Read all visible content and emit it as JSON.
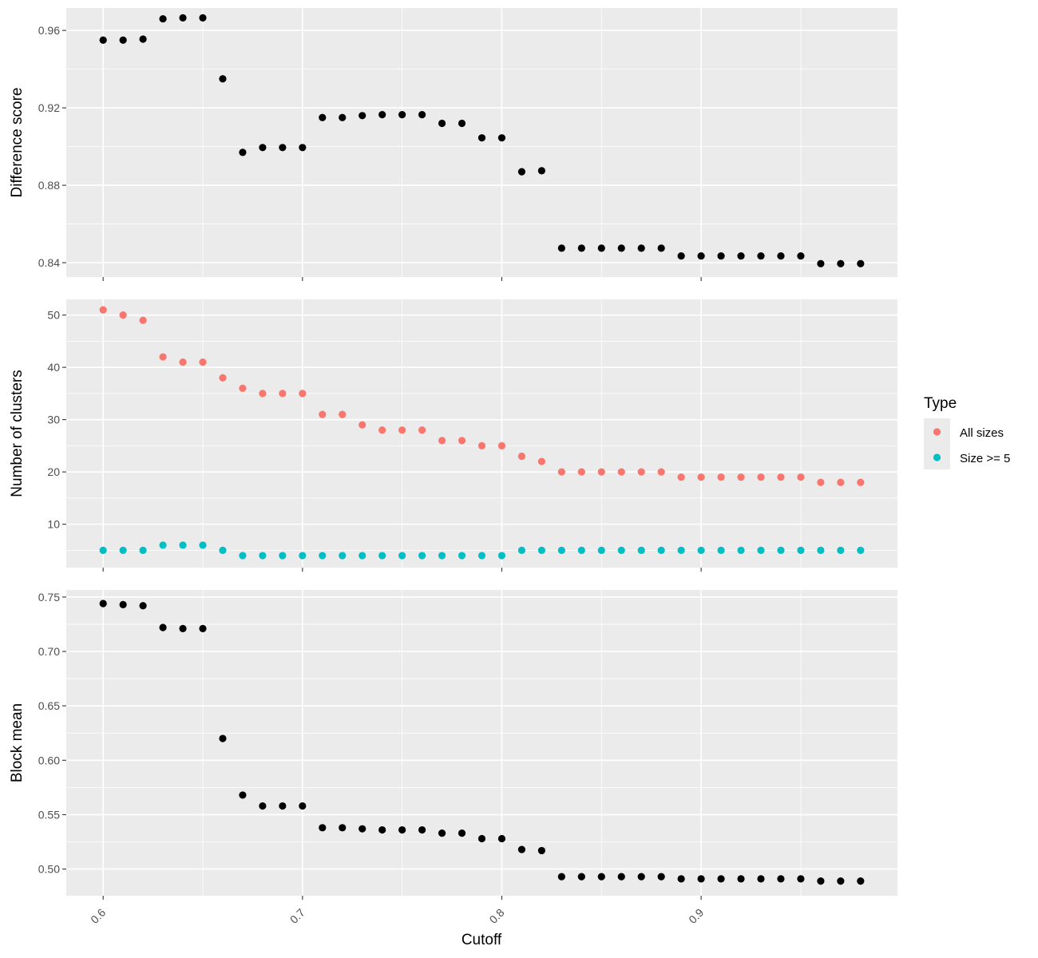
{
  "chart_data": {
    "type": "scatter",
    "xlabel": "Cutoff",
    "x_ticks": [
      0.6,
      0.7,
      0.8,
      0.9
    ],
    "x_tick_labels": [
      "0.6",
      "0.7",
      "0.8",
      "0.9"
    ],
    "xlim": [
      0.5815,
      0.9985
    ],
    "x": [
      0.6,
      0.61,
      0.62,
      0.63,
      0.64,
      0.65,
      0.66,
      0.67,
      0.68,
      0.69,
      0.7,
      0.71,
      0.72,
      0.73,
      0.74,
      0.75,
      0.76,
      0.77,
      0.78,
      0.79,
      0.8,
      0.81,
      0.82,
      0.83,
      0.84,
      0.85,
      0.86,
      0.87,
      0.88,
      0.89,
      0.9,
      0.91,
      0.92,
      0.93,
      0.94,
      0.95,
      0.96,
      0.97,
      0.98
    ],
    "grid": true,
    "panels": [
      {
        "ylabel": "Difference score",
        "ylim": [
          0.8326,
          0.9716
        ],
        "y_ticks": [
          0.84,
          0.88,
          0.92,
          0.96
        ],
        "y_tick_labels": [
          "0.84",
          "0.88",
          "0.92",
          "0.96"
        ],
        "series": [
          {
            "color": "#000000",
            "values": [
              0.955,
              0.955,
              0.9555,
              0.966,
              0.9665,
              0.9665,
              0.935,
              0.897,
              0.8995,
              0.8995,
              0.8995,
              0.915,
              0.915,
              0.916,
              0.9165,
              0.9165,
              0.9165,
              0.912,
              0.912,
              0.9045,
              0.9045,
              0.887,
              0.8875,
              0.8475,
              0.8475,
              0.8475,
              0.8475,
              0.8475,
              0.8475,
              0.8435,
              0.8435,
              0.8435,
              0.8435,
              0.8435,
              0.8435,
              0.8435,
              0.8395,
              0.8395,
              0.8395
            ]
          }
        ]
      },
      {
        "ylabel": "Number of clusters",
        "ylim": [
          1.7,
          53.0
        ],
        "y_ticks": [
          10,
          20,
          30,
          40,
          50
        ],
        "y_tick_labels": [
          "10",
          "20",
          "30",
          "40",
          "50"
        ],
        "series": [
          {
            "name": "All sizes",
            "color": "#F8766D",
            "values": [
              51,
              50,
              49,
              42,
              41,
              41,
              38,
              36,
              35,
              35,
              35,
              31,
              31,
              29,
              28,
              28,
              28,
              26,
              26,
              25,
              25,
              23,
              22,
              20,
              20,
              20,
              20,
              20,
              20,
              19,
              19,
              19,
              19,
              19,
              19,
              19,
              18,
              18,
              18
            ]
          },
          {
            "name": "Size >= 5",
            "color": "#00BFC4",
            "values": [
              5,
              5,
              5,
              6,
              6,
              6,
              5,
              4,
              4,
              4,
              4,
              4,
              4,
              4,
              4,
              4,
              4,
              4,
              4,
              4,
              4,
              5,
              5,
              5,
              5,
              5,
              5,
              5,
              5,
              5,
              5,
              5,
              5,
              5,
              5,
              5,
              5,
              5,
              5
            ]
          }
        ]
      },
      {
        "ylabel": "Block mean",
        "ylim": [
          0.4755,
          0.7565
        ],
        "y_ticks": [
          0.5,
          0.55,
          0.6,
          0.65,
          0.7,
          0.75
        ],
        "y_tick_labels": [
          "0.50",
          "0.55",
          "0.60",
          "0.65",
          "0.70",
          "0.75"
        ],
        "series": [
          {
            "color": "#000000",
            "values": [
              0.744,
              0.743,
              0.742,
              0.722,
              0.721,
              0.721,
              0.62,
              0.568,
              0.558,
              0.558,
              0.558,
              0.538,
              0.538,
              0.537,
              0.536,
              0.536,
              0.536,
              0.533,
              0.533,
              0.528,
              0.528,
              0.518,
              0.517,
              0.493,
              0.493,
              0.493,
              0.493,
              0.493,
              0.493,
              0.491,
              0.491,
              0.491,
              0.491,
              0.491,
              0.491,
              0.491,
              0.489,
              0.489,
              0.489
            ]
          }
        ]
      }
    ],
    "legend": {
      "title": "Type",
      "position": "right",
      "entries": [
        {
          "label": "All sizes",
          "color": "#F8766D"
        },
        {
          "label": "Size >= 5",
          "color": "#00BFC4"
        }
      ]
    }
  }
}
